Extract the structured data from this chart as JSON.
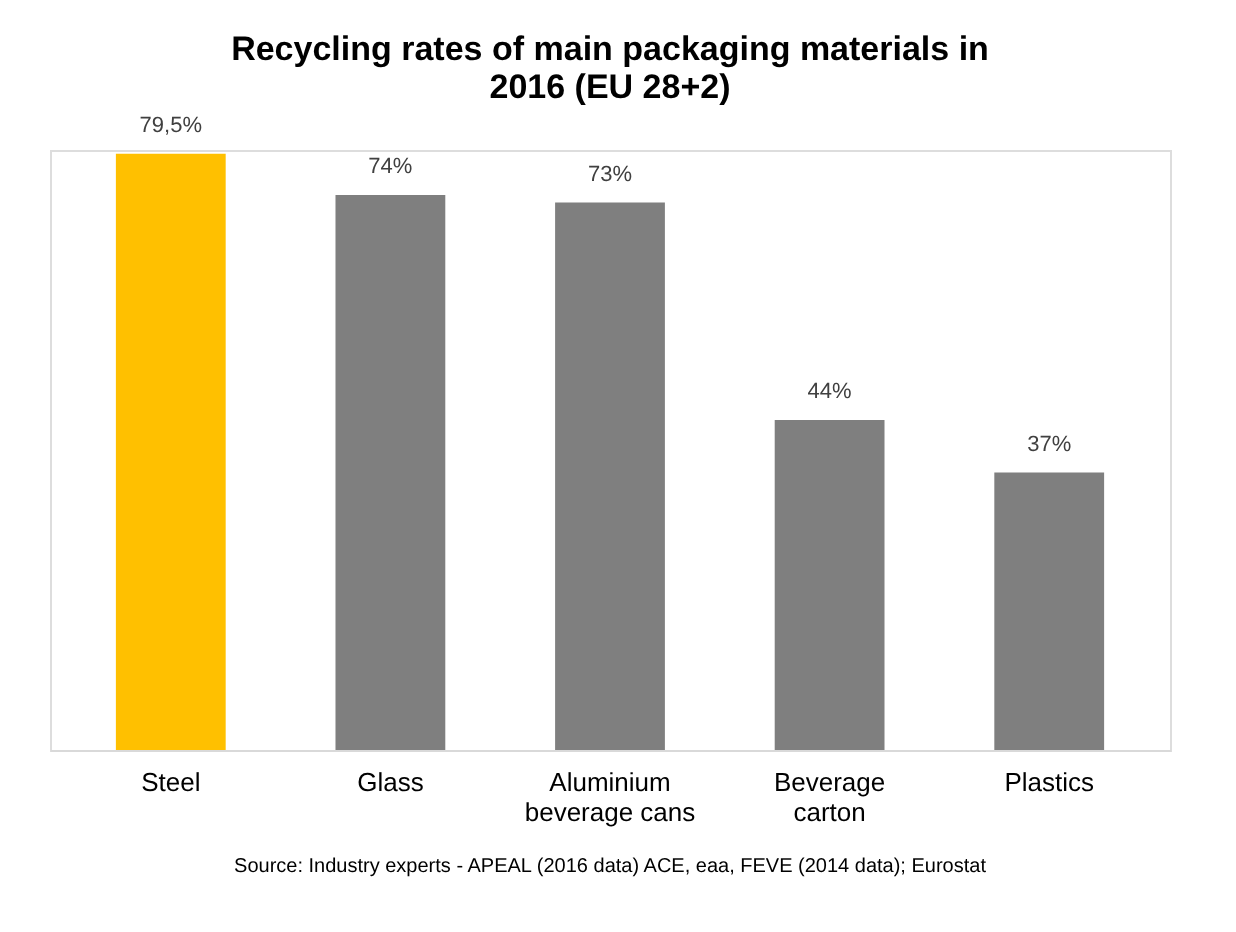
{
  "chart_data": {
    "type": "bar",
    "title": "Recycling rates of main packaging materials in 2016 (EU 28+2)",
    "categories": [
      "Steel",
      "Glass",
      "Aluminium beverage cans",
      "Beverage carton",
      "Plastics"
    ],
    "values": [
      79.5,
      74,
      73,
      44,
      37
    ],
    "colors": [
      "#ffc000",
      "#7f7f7f",
      "#7f7f7f",
      "#7f7f7f",
      "#7f7f7f"
    ],
    "value_labels": [
      "79,5%",
      "74%",
      "73%",
      "44%",
      "37%"
    ],
    "grid": false,
    "annotations": [
      "Source: Industry experts - APEAL (2016 data) ACE, eaa, FEVE (2014 data); Eurostat"
    ]
  }
}
